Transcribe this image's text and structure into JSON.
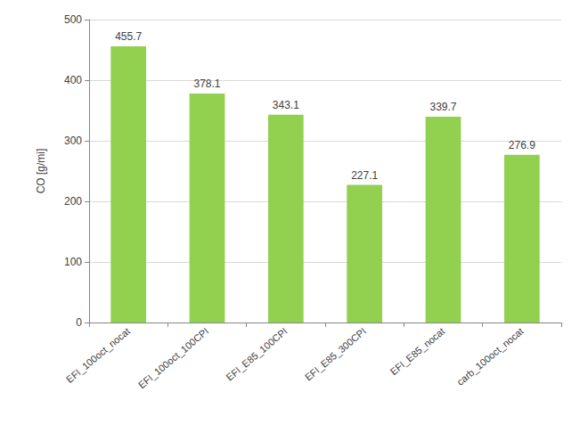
{
  "chart_data": {
    "type": "bar",
    "y_label": "CO [g/mi]",
    "categories": [
      "EFI_100oct_nocat",
      "EFI_100oct_100CPI",
      "EFI_E85_100CPI",
      "EFI_E85_300CPI",
      "EFI_E85_nocat",
      "carb_100oct_nocat"
    ],
    "values": [
      455.7,
      378.1,
      343.1,
      227.1,
      339.7,
      276.9
    ],
    "color": "#92d050",
    "ylim": [
      0,
      500
    ],
    "yticks": [
      0,
      100,
      200,
      300,
      400,
      500
    ],
    "grid": true,
    "data_labels": true
  }
}
